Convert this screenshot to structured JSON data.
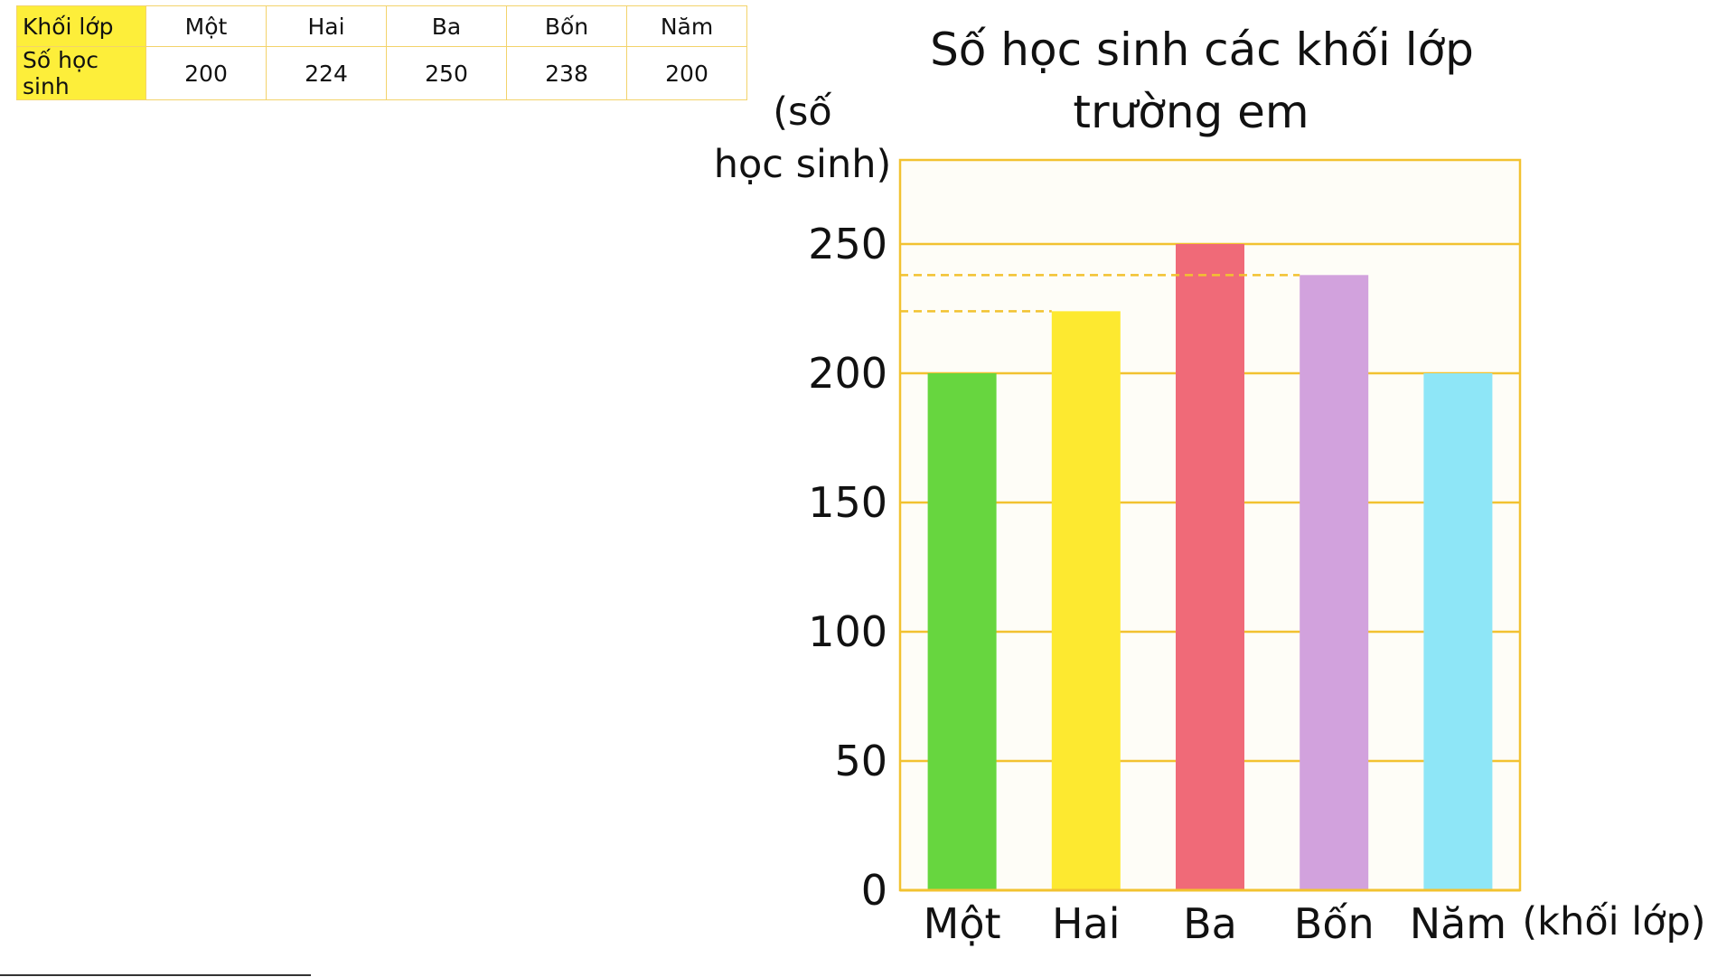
{
  "table": {
    "header_row_label": "Khối lớp",
    "value_row_label": "Số học sinh",
    "categories": [
      "Một",
      "Hai",
      "Ba",
      "Bốn",
      "Năm"
    ],
    "values": [
      "200",
      "224",
      "250",
      "238",
      "200"
    ]
  },
  "chart_data": {
    "type": "bar",
    "title_line1": "Số học sinh các khối lớp",
    "title_line2": "trường em",
    "ylabel_line1": "(số",
    "ylabel_line2": "học sinh)",
    "xlabel": "(khối lớp)",
    "categories": [
      "Một",
      "Hai",
      "Ba",
      "Bốn",
      "Năm"
    ],
    "values": [
      200,
      224,
      250,
      238,
      200
    ],
    "colors": [
      "#67d63f",
      "#fde930",
      "#f06a78",
      "#d2a2dd",
      "#8ee6f7"
    ],
    "yticks": [
      0,
      50,
      100,
      150,
      200,
      250
    ],
    "ylim": [
      0,
      280
    ],
    "grid": true,
    "grid_color": "#f2c230",
    "plot_background": "#fefdf7",
    "guide_lines": [
      224,
      238
    ]
  }
}
